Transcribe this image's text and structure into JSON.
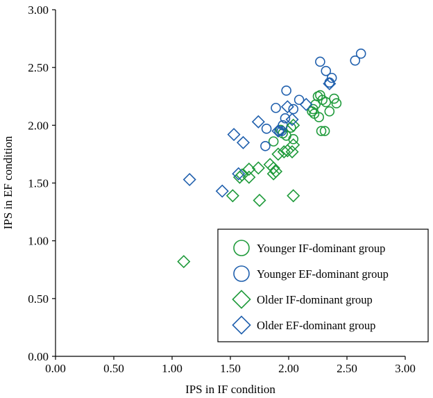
{
  "colors": {
    "younger_if": "#1e9a3a",
    "younger_ef": "#1f5fad",
    "older_if": "#1e9a3a",
    "older_ef": "#1f5fad",
    "axis": "#000000"
  },
  "chart_data": {
    "type": "scatter",
    "title": "",
    "xlabel": "IPS in IF condition",
    "ylabel": "IPS in EF condition",
    "xlim": [
      0,
      3
    ],
    "ylim": [
      0,
      3
    ],
    "xticks": [
      "0.00",
      "0.50",
      "1.00",
      "1.50",
      "2.00",
      "2.50",
      "3.00"
    ],
    "yticks": [
      "0.00",
      "0.50",
      "1.00",
      "1.50",
      "2.00",
      "2.50",
      "3.00"
    ],
    "grid": false,
    "legend_position": "bottom-right",
    "series": [
      {
        "name": "Younger IF-dominant group",
        "marker": "circle",
        "color_key": "younger_if",
        "points": [
          [
            2.25,
            2.25
          ],
          [
            2.27,
            2.26
          ],
          [
            2.23,
            2.18
          ],
          [
            2.29,
            2.22
          ],
          [
            2.32,
            2.2
          ],
          [
            2.39,
            2.23
          ],
          [
            2.41,
            2.19
          ],
          [
            2.35,
            2.12
          ],
          [
            2.22,
            2.1
          ],
          [
            2.2,
            2.12
          ],
          [
            2.26,
            2.07
          ],
          [
            2.21,
            2.14
          ],
          [
            2.28,
            1.95
          ],
          [
            2.31,
            1.95
          ],
          [
            2.02,
            1.98
          ],
          [
            1.98,
            1.91
          ],
          [
            2.04,
            1.88
          ],
          [
            1.93,
            1.96
          ],
          [
            1.95,
            1.93
          ],
          [
            1.87,
            1.86
          ]
        ]
      },
      {
        "name": "Younger EF-dominant group",
        "marker": "circle",
        "color_key": "younger_ef",
        "points": [
          [
            2.62,
            2.62
          ],
          [
            2.57,
            2.56
          ],
          [
            2.27,
            2.55
          ],
          [
            2.32,
            2.47
          ],
          [
            2.37,
            2.41
          ],
          [
            2.35,
            2.37
          ],
          [
            1.98,
            2.3
          ],
          [
            2.09,
            2.22
          ],
          [
            1.89,
            2.15
          ],
          [
            2.04,
            2.14
          ],
          [
            1.97,
            2.06
          ],
          [
            1.95,
            2.0
          ],
          [
            1.81,
            1.97
          ],
          [
            1.92,
            1.95
          ],
          [
            1.94,
            1.95
          ],
          [
            1.8,
            1.82
          ]
        ]
      },
      {
        "name": "Older IF-dominant group",
        "marker": "diamond",
        "color_key": "older_if",
        "points": [
          [
            2.04,
            2.0
          ],
          [
            1.96,
            1.77
          ],
          [
            2.04,
            1.83
          ],
          [
            1.91,
            1.75
          ],
          [
            1.99,
            1.78
          ],
          [
            2.03,
            1.77
          ],
          [
            1.84,
            1.66
          ],
          [
            1.87,
            1.63
          ],
          [
            1.87,
            1.58
          ],
          [
            1.89,
            1.6
          ],
          [
            1.66,
            1.62
          ],
          [
            1.74,
            1.63
          ],
          [
            1.6,
            1.57
          ],
          [
            1.66,
            1.55
          ],
          [
            1.58,
            1.55
          ],
          [
            1.52,
            1.39
          ],
          [
            1.75,
            1.35
          ],
          [
            2.04,
            1.39
          ],
          [
            1.1,
            0.82
          ]
        ]
      },
      {
        "name": "Older EF-dominant group",
        "marker": "diamond",
        "color_key": "older_ef",
        "points": [
          [
            2.35,
            2.36
          ],
          [
            2.15,
            2.18
          ],
          [
            1.99,
            2.16
          ],
          [
            2.03,
            2.05
          ],
          [
            1.74,
            2.03
          ],
          [
            1.91,
            1.95
          ],
          [
            1.53,
            1.92
          ],
          [
            1.61,
            1.85
          ],
          [
            1.15,
            1.53
          ],
          [
            1.57,
            1.58
          ],
          [
            1.43,
            1.43
          ]
        ]
      }
    ]
  }
}
